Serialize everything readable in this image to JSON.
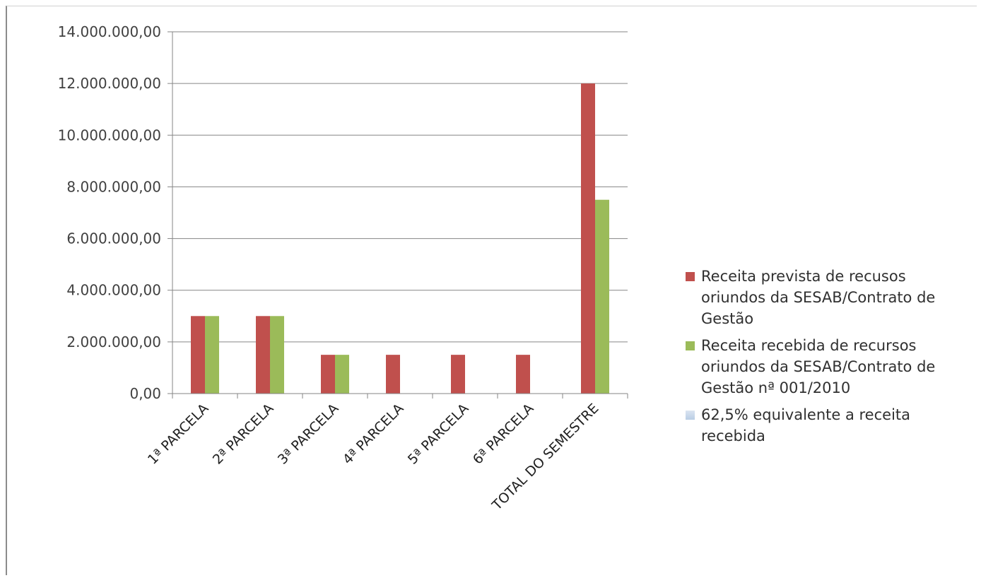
{
  "chart_data": {
    "type": "bar",
    "categories": [
      "1ª PARCELA",
      "2ª PARCELA",
      "3ª PARCELA",
      "4ª PARCELA",
      "5ª PARCELA",
      "6ª PARCELA",
      "TOTAL DO SEMESTRE"
    ],
    "series": [
      {
        "name": "Receita  prevista de recusos oriundos da SESAB/Contrato de Gestão",
        "color": "#c0504d",
        "values": [
          3000000,
          3000000,
          1500000,
          1500000,
          1500000,
          1500000,
          12000000
        ]
      },
      {
        "name": "Receita recebida de recursos oriundos da SESAB/Contrato de Gestão nª 001/2010",
        "color": "#9bbb59",
        "values": [
          3000000,
          3000000,
          1500000,
          0,
          0,
          0,
          7500000
        ]
      },
      {
        "name": "62,5% equivalente a receita recebida",
        "color": "#b9cde5",
        "values": [
          0,
          0,
          0,
          0,
          0,
          0,
          0
        ]
      }
    ],
    "ylim": [
      0,
      14000000
    ],
    "yticks": [
      0,
      2000000,
      4000000,
      6000000,
      8000000,
      10000000,
      12000000,
      14000000
    ],
    "ytick_labels": [
      "0,00",
      "2.000.000,00",
      "4.000.000,00",
      "6.000.000,00",
      "8.000.000,00",
      "10.000.000,00",
      "12.000.000,00",
      "14.000.000,00"
    ],
    "title": "",
    "xlabel": "",
    "ylabel": "",
    "grid": true,
    "legend_position": "right"
  }
}
